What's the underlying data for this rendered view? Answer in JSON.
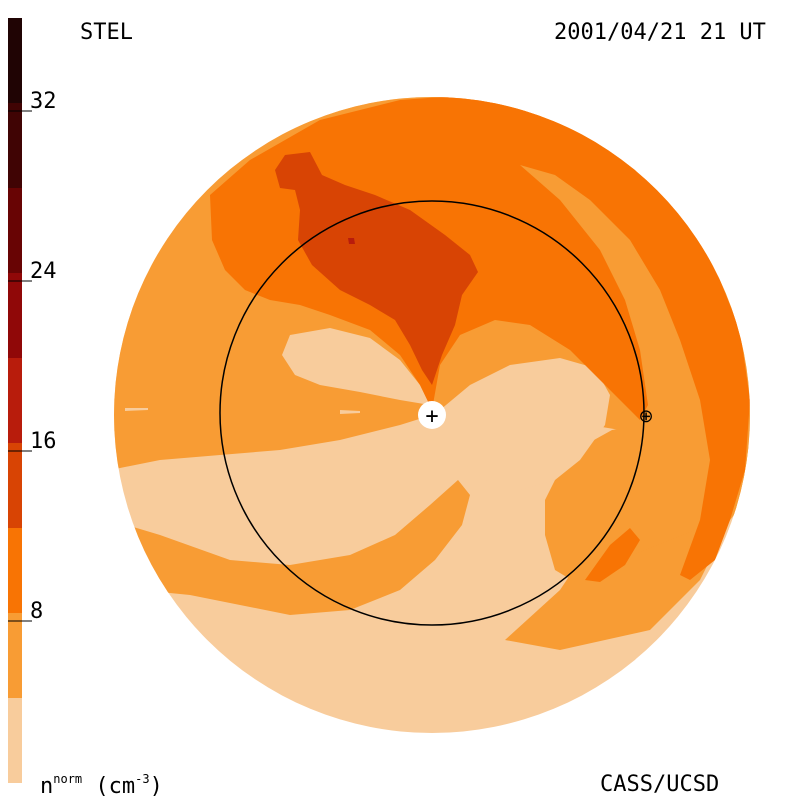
{
  "header": {
    "left_label": "STEL",
    "right_label": "2001/04/21 21 UT"
  },
  "footer": {
    "right_label": "CASS/UCSD",
    "units_symbol": "n",
    "units_super": "norm",
    "units_open": "(cm",
    "units_exp": "-3",
    "units_close": ")"
  },
  "colorbar": {
    "min": 0,
    "max": 36,
    "tick_values": [
      8,
      16,
      24,
      32
    ],
    "tick_labels": [
      "8",
      "16",
      "24",
      "32"
    ],
    "bands": [
      {
        "from": 0,
        "to": 4,
        "color": "#f8cc9c"
      },
      {
        "from": 4,
        "to": 8,
        "color": "#f89c34"
      },
      {
        "from": 8,
        "to": 12,
        "color": "#f87404"
      },
      {
        "from": 12,
        "to": 16,
        "color": "#d84404"
      },
      {
        "from": 16,
        "to": 20,
        "color": "#b81c0c"
      },
      {
        "from": 20,
        "to": 24,
        "color": "#900808"
      },
      {
        "from": 24,
        "to": 28,
        "color": "#680404"
      },
      {
        "from": 28,
        "to": 32,
        "color": "#400404"
      },
      {
        "from": 32,
        "to": 36,
        "color": "#200404"
      }
    ]
  },
  "colors": {
    "level_1": "#f8cc9c",
    "level_2": "#f89c34",
    "level_3": "#f87404",
    "level_4": "#d84404",
    "level_5": "#b81c0c",
    "orbit": "#000000"
  },
  "markers": {
    "sun_symbol": "+",
    "earth_symbol": "⊕"
  }
}
